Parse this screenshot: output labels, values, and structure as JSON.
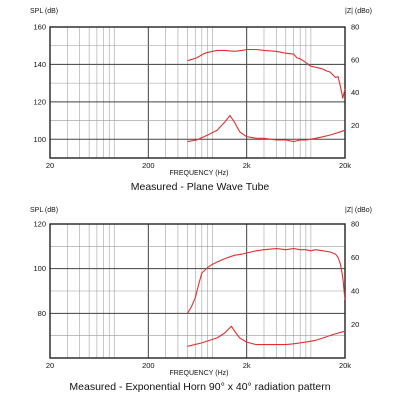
{
  "chart_data": [
    {
      "type": "line",
      "caption": "Measured - Plane Wave Tube",
      "xlabel": "FREQUENCY (Hz)",
      "ylabel_left": "SPL (dB)",
      "ylabel_right": "|Z| (dBo)",
      "x_scale": "log",
      "xlim": [
        20,
        20000
      ],
      "ylim_left": [
        90,
        160
      ],
      "ylim_right": [
        0,
        80
      ],
      "x_ticks": [
        {
          "value": 20,
          "label": "20"
        },
        {
          "value": 200,
          "label": "200"
        },
        {
          "value": 2000,
          "label": "2k"
        },
        {
          "value": 20000,
          "label": "20k"
        }
      ],
      "y_ticks_left": [
        {
          "value": 100,
          "label": "100"
        },
        {
          "value": 120,
          "label": "120"
        },
        {
          "value": 140,
          "label": "140"
        },
        {
          "value": 160,
          "label": "160"
        }
      ],
      "y_ticks_right": [
        {
          "value": 20,
          "label": "20"
        },
        {
          "value": 40,
          "label": "40"
        },
        {
          "value": 60,
          "label": "60"
        },
        {
          "value": 80,
          "label": "80"
        }
      ],
      "grid": true,
      "series": [
        {
          "axis": "left",
          "color": "#e03030",
          "x": [
            500,
            620,
            750,
            900,
            1000,
            1200,
            1500,
            1800,
            2000,
            2500,
            3000,
            4000,
            5000,
            6000,
            6500,
            7000,
            8000,
            9000,
            10000,
            11000,
            12000,
            13000,
            14000,
            15000,
            16000,
            17000,
            18000,
            19000,
            20000
          ],
          "y": [
            142,
            143.5,
            146,
            147,
            147.5,
            147.5,
            147,
            147.5,
            148,
            148,
            147.5,
            147,
            146,
            145.5,
            143.5,
            143,
            141,
            139,
            138.5,
            138,
            137.5,
            136.5,
            136,
            134.5,
            133,
            133.5,
            128,
            122,
            127
          ]
        },
        {
          "axis": "right",
          "color": "#e03030",
          "x": [
            500,
            620,
            800,
            1000,
            1200,
            1350,
            1500,
            1700,
            2000,
            2500,
            3000,
            4000,
            5000,
            6000,
            7000,
            8000,
            9000,
            10000,
            12000,
            14000,
            16000,
            18000,
            20000
          ],
          "y": [
            10,
            11,
            14,
            17,
            22,
            26,
            22,
            16,
            13,
            12,
            12,
            11,
            11,
            10,
            11,
            11,
            11.5,
            12,
            13,
            14,
            15,
            16,
            17
          ]
        }
      ]
    },
    {
      "type": "line",
      "caption": "Measured - Exponential Horn 90° x 40° radiation pattern",
      "xlabel": "FREQUENCY (Hz)",
      "ylabel_left": "SPL (dB)",
      "ylabel_right": "|Z| (dBo)",
      "x_scale": "log",
      "xlim": [
        20,
        20000
      ],
      "ylim_left": [
        60,
        120
      ],
      "ylim_right": [
        0,
        80
      ],
      "x_ticks": [
        {
          "value": 20,
          "label": "20"
        },
        {
          "value": 200,
          "label": "200"
        },
        {
          "value": 2000,
          "label": "2k"
        },
        {
          "value": 20000,
          "label": "20k"
        }
      ],
      "y_ticks_left": [
        {
          "value": 80,
          "label": "80"
        },
        {
          "value": 100,
          "label": "100"
        },
        {
          "value": 120,
          "label": "120"
        }
      ],
      "y_ticks_right": [
        {
          "value": 20,
          "label": "20"
        },
        {
          "value": 40,
          "label": "40"
        },
        {
          "value": 60,
          "label": "60"
        },
        {
          "value": 80,
          "label": "80"
        }
      ],
      "grid": true,
      "series": [
        {
          "axis": "left",
          "color": "#e03030",
          "x": [
            500,
            550,
            600,
            650,
            700,
            800,
            900,
            1000,
            1200,
            1500,
            1800,
            2000,
            2500,
            3000,
            4000,
            5000,
            6000,
            7000,
            8000,
            9000,
            10000,
            12000,
            14000,
            16000,
            17000,
            18000,
            19000,
            20000
          ],
          "y": [
            80,
            83,
            87,
            93,
            98,
            100.5,
            102,
            103,
            104.5,
            106,
            106.5,
            107,
            108,
            108.5,
            109,
            108.5,
            109,
            108.5,
            108.5,
            108,
            108.5,
            108,
            107.5,
            106.5,
            105,
            102,
            96,
            86
          ]
        },
        {
          "axis": "right",
          "color": "#e03030",
          "x": [
            500,
            700,
            1000,
            1200,
            1400,
            1550,
            1700,
            2000,
            2500,
            3000,
            4000,
            5000,
            6000,
            8000,
            10000,
            12000,
            15000,
            20000
          ],
          "y": [
            7,
            9,
            12,
            15,
            19,
            15,
            12,
            9.5,
            8,
            8,
            8,
            8,
            8.5,
            9.5,
            10.5,
            12,
            14,
            16
          ]
        }
      ]
    }
  ]
}
